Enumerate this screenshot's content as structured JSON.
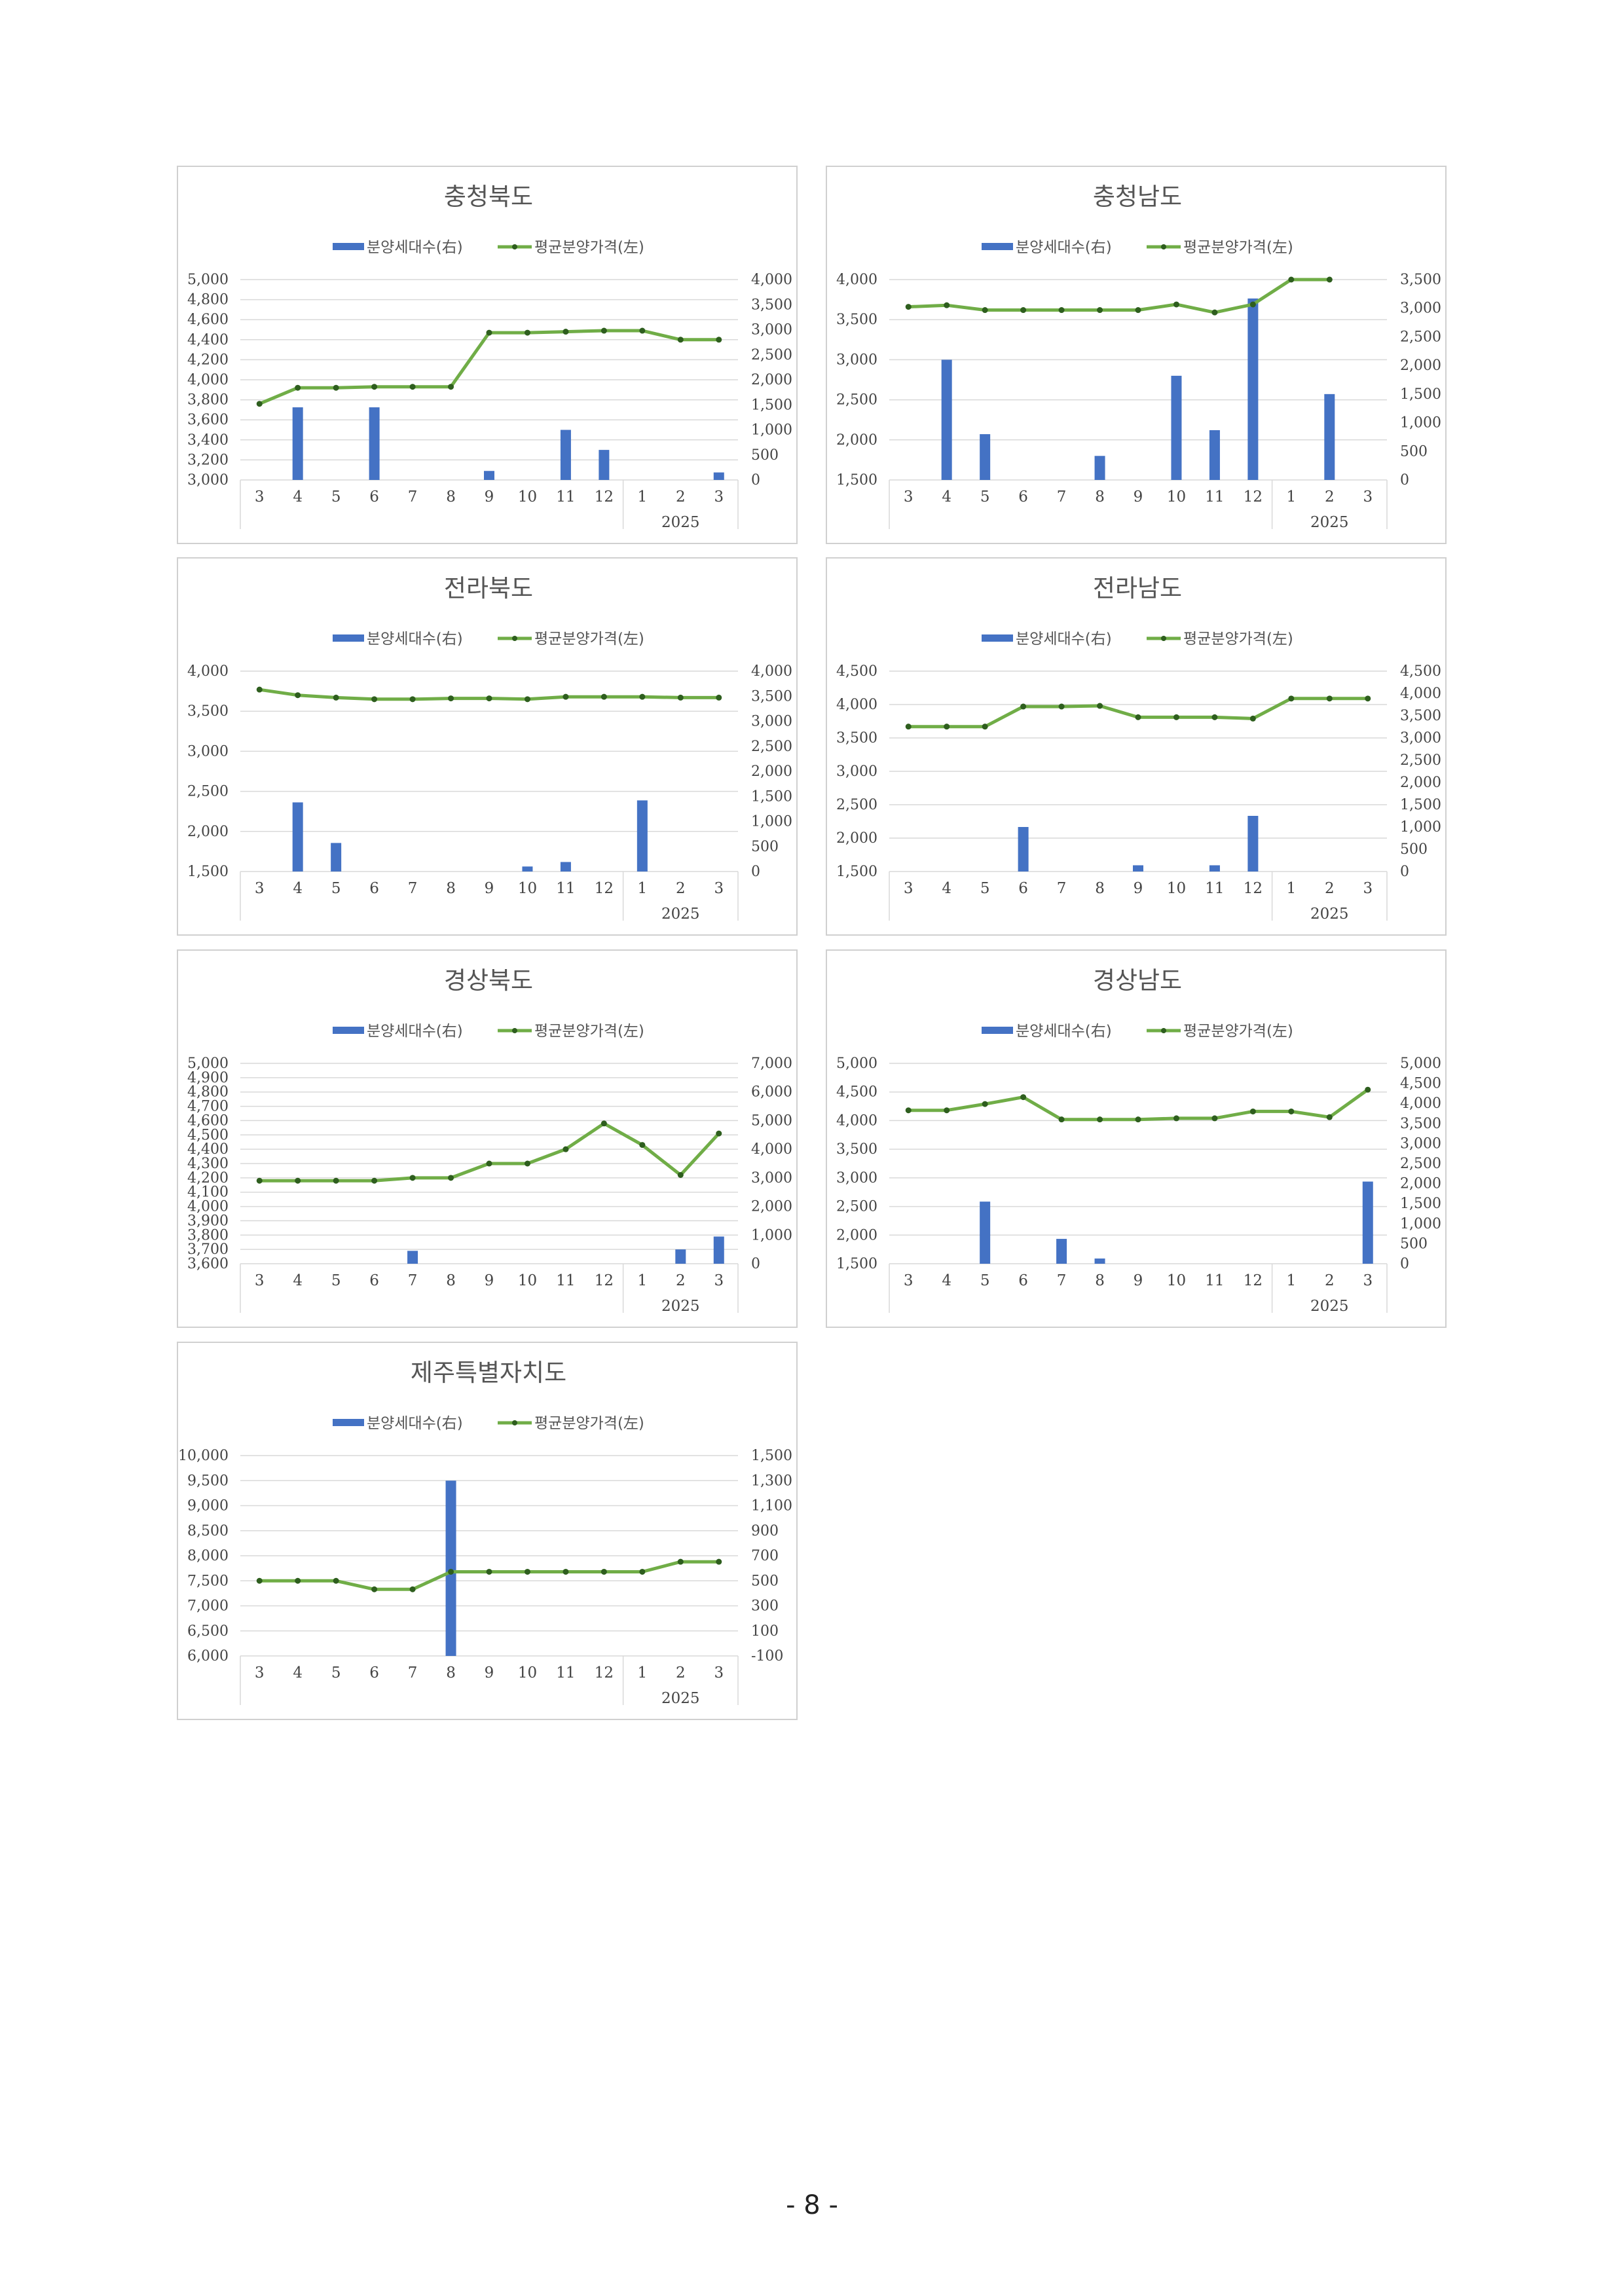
{
  "page_number": "- 8 -",
  "colors": {
    "bar": "#4472C4",
    "line": "#70AD47",
    "marker": "#2E5E1E",
    "grid": "#d9d9d9",
    "axis_text": "#444444"
  },
  "legend": {
    "bar_label": "분양세대수(右)",
    "line_label": "평균분양가격(左)"
  },
  "x_ticks": [
    "3",
    "4",
    "5",
    "6",
    "7",
    "8",
    "9",
    "10",
    "11",
    "12",
    "1",
    "2",
    "3"
  ],
  "year_label": "2025",
  "chart_data": [
    {
      "type": "bar+line",
      "title": "충청북도",
      "left_axis": {
        "min": 3000,
        "max": 5000,
        "step": 200
      },
      "right_axis": {
        "min": 0,
        "max": 4000,
        "step": 500
      },
      "line_values": [
        3760,
        3920,
        3920,
        3930,
        3930,
        3930,
        4470,
        4470,
        4480,
        4490,
        4490,
        4400,
        4400
      ],
      "bar_values": [
        0,
        1450,
        0,
        1450,
        0,
        0,
        180,
        0,
        1000,
        600,
        0,
        0,
        150
      ]
    },
    {
      "type": "bar+line",
      "title": "충청남도",
      "left_axis": {
        "min": 1500,
        "max": 4000,
        "step": 500
      },
      "right_axis": {
        "min": 0,
        "max": 3500,
        "step": 500
      },
      "line_values": [
        3660,
        3680,
        3620,
        3620,
        3620,
        3620,
        3620,
        3690,
        3590,
        3690,
        4000,
        4000,
        null
      ],
      "bar_values": [
        0,
        2100,
        800,
        0,
        0,
        420,
        0,
        1820,
        870,
        3170,
        0,
        1500,
        0
      ]
    },
    {
      "type": "bar+line",
      "title": "전라북도",
      "left_axis": {
        "min": 1500,
        "max": 4000,
        "step": 500
      },
      "right_axis": {
        "min": 0,
        "max": 4000,
        "step": 500
      },
      "line_values": [
        3770,
        3700,
        3670,
        3650,
        3650,
        3660,
        3660,
        3650,
        3680,
        3680,
        3680,
        3670,
        3670
      ],
      "bar_values": [
        0,
        1380,
        570,
        0,
        0,
        0,
        0,
        100,
        190,
        0,
        1420,
        0,
        0
      ]
    },
    {
      "type": "bar+line",
      "title": "전라남도",
      "left_axis": {
        "min": 1500,
        "max": 4500,
        "step": 500
      },
      "right_axis": {
        "min": 0,
        "max": 4500,
        "step": 500
      },
      "line_values": [
        3670,
        3670,
        3670,
        3970,
        3970,
        3980,
        3810,
        3810,
        3810,
        3790,
        4090,
        4090,
        4090
      ],
      "bar_values": [
        0,
        0,
        0,
        1000,
        0,
        0,
        140,
        0,
        140,
        1250,
        0,
        0,
        0
      ]
    },
    {
      "type": "bar+line",
      "title": "경상북도",
      "left_axis": {
        "min": 3600,
        "max": 5000,
        "step": 100
      },
      "right_axis": {
        "min": 0,
        "max": 7000,
        "step": 1000
      },
      "line_values": [
        4180,
        4180,
        4180,
        4180,
        4200,
        4200,
        4300,
        4300,
        4400,
        4580,
        4430,
        4220,
        4510
      ],
      "bar_values": [
        0,
        0,
        0,
        0,
        450,
        0,
        0,
        0,
        0,
        0,
        0,
        500,
        950
      ]
    },
    {
      "type": "bar+line",
      "title": "경상남도",
      "left_axis": {
        "min": 1500,
        "max": 5000,
        "step": 500
      },
      "right_axis": {
        "min": 0,
        "max": 5000,
        "step": 500
      },
      "line_values": [
        4180,
        4180,
        4290,
        4410,
        4020,
        4020,
        4020,
        4040,
        4040,
        4160,
        4160,
        4060,
        4540
      ],
      "bar_values": [
        0,
        0,
        1550,
        0,
        620,
        130,
        0,
        0,
        0,
        0,
        0,
        0,
        2050
      ]
    },
    {
      "type": "bar+line",
      "title": "제주특별자치도",
      "left_axis": {
        "min": 6000,
        "max": 10000,
        "step": 500
      },
      "right_axis": {
        "min": -100,
        "max": 1500,
        "step": 200
      },
      "line_values": [
        7500,
        7500,
        7500,
        7330,
        7330,
        7680,
        7680,
        7680,
        7680,
        7680,
        7680,
        7880,
        7880
      ],
      "bar_values": [
        0,
        0,
        0,
        0,
        0,
        1400,
        0,
        0,
        0,
        0,
        0,
        0,
        0
      ],
      "bar_base": -100
    }
  ]
}
